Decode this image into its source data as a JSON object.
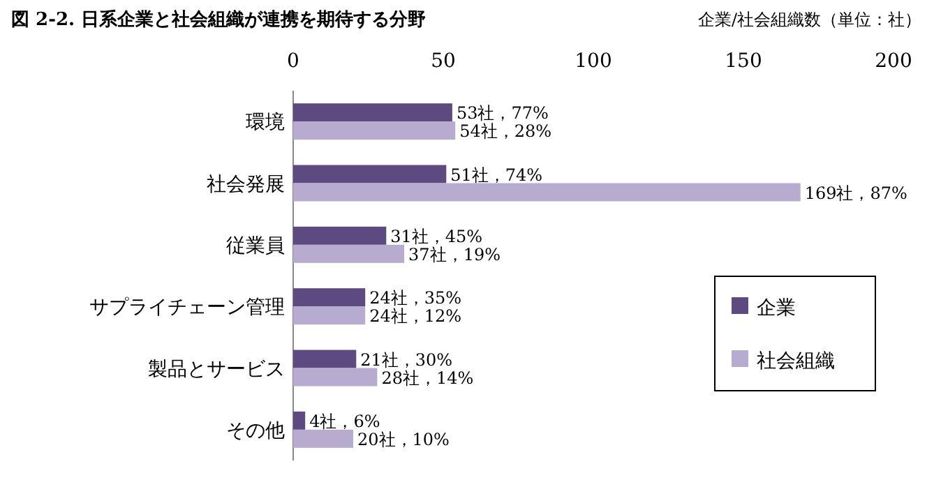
{
  "chart_data": {
    "type": "bar",
    "orientation": "horizontal",
    "title": "図 2-2.  日系企業と社会組織が連携を期待する分野",
    "xlabel": "企業/社会組織数（単位：社）",
    "categories": [
      "環境",
      "社会発展",
      "従業員",
      "サプライチェーン管理",
      "製品とサービス",
      "その他"
    ],
    "series": [
      {
        "name": "企業",
        "color": "#5c4a80",
        "values": [
          53,
          51,
          31,
          24,
          21,
          4
        ],
        "value_labels": [
          "53社，77%",
          "51社，74%",
          "31社，45%",
          "24社，35%",
          "21社，30%",
          "4社，6%"
        ]
      },
      {
        "name": "社会組織",
        "color": "#b8abd0",
        "values": [
          54,
          169,
          37,
          24,
          28,
          20
        ],
        "value_labels": [
          "54社，28%",
          "169社，87%",
          "37社，19%",
          "24社，12%",
          "28社，14%",
          "20社，10%"
        ]
      }
    ],
    "xlim": [
      0,
      200
    ],
    "xticks": [
      0,
      50,
      100,
      150,
      200
    ],
    "legend": "right"
  }
}
